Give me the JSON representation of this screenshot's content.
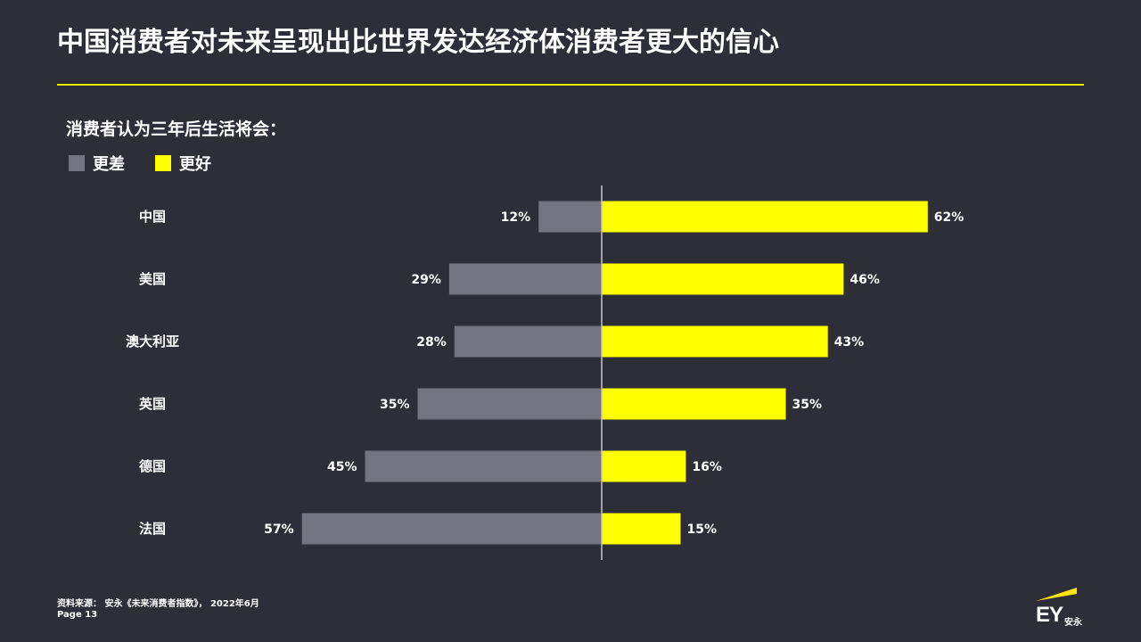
{
  "title": "中国消费者对未来呈现出比世界发达经济体消费者更大的信心",
  "subtitle": "消费者认为三年后生活将会：",
  "legend": {
    "worse_label": "更差",
    "better_label": "更好"
  },
  "colors": {
    "background": "#2e2e38",
    "accent": "#ffe600",
    "worse": "#747480",
    "better": "#ffff00",
    "axis": "#c4c4cd"
  },
  "chart_data": {
    "type": "bar",
    "orientation": "horizontal-diverging",
    "categories": [
      "中国",
      "美国",
      "澳大利亚",
      "英国",
      "德国",
      "法国"
    ],
    "series": [
      {
        "name": "更差",
        "values": [
          12,
          29,
          28,
          35,
          45,
          57
        ],
        "labels": [
          "12%",
          "29%",
          "28%",
          "35%",
          "45%",
          "57%"
        ]
      },
      {
        "name": "更好",
        "values": [
          62,
          46,
          43,
          35,
          16,
          15
        ],
        "labels": [
          "62%",
          "46%",
          "43%",
          "35%",
          "16%",
          "15%"
        ]
      }
    ],
    "unit": "%",
    "legend_position": "top-left",
    "grid": false
  },
  "footer": {
    "source": "资料来源： 安永《未来消费者指数》， 2022年6月",
    "page": "Page 13"
  },
  "logo": {
    "mark": "EY",
    "cn": "安永",
    "icon": "ey-beam-logo"
  }
}
